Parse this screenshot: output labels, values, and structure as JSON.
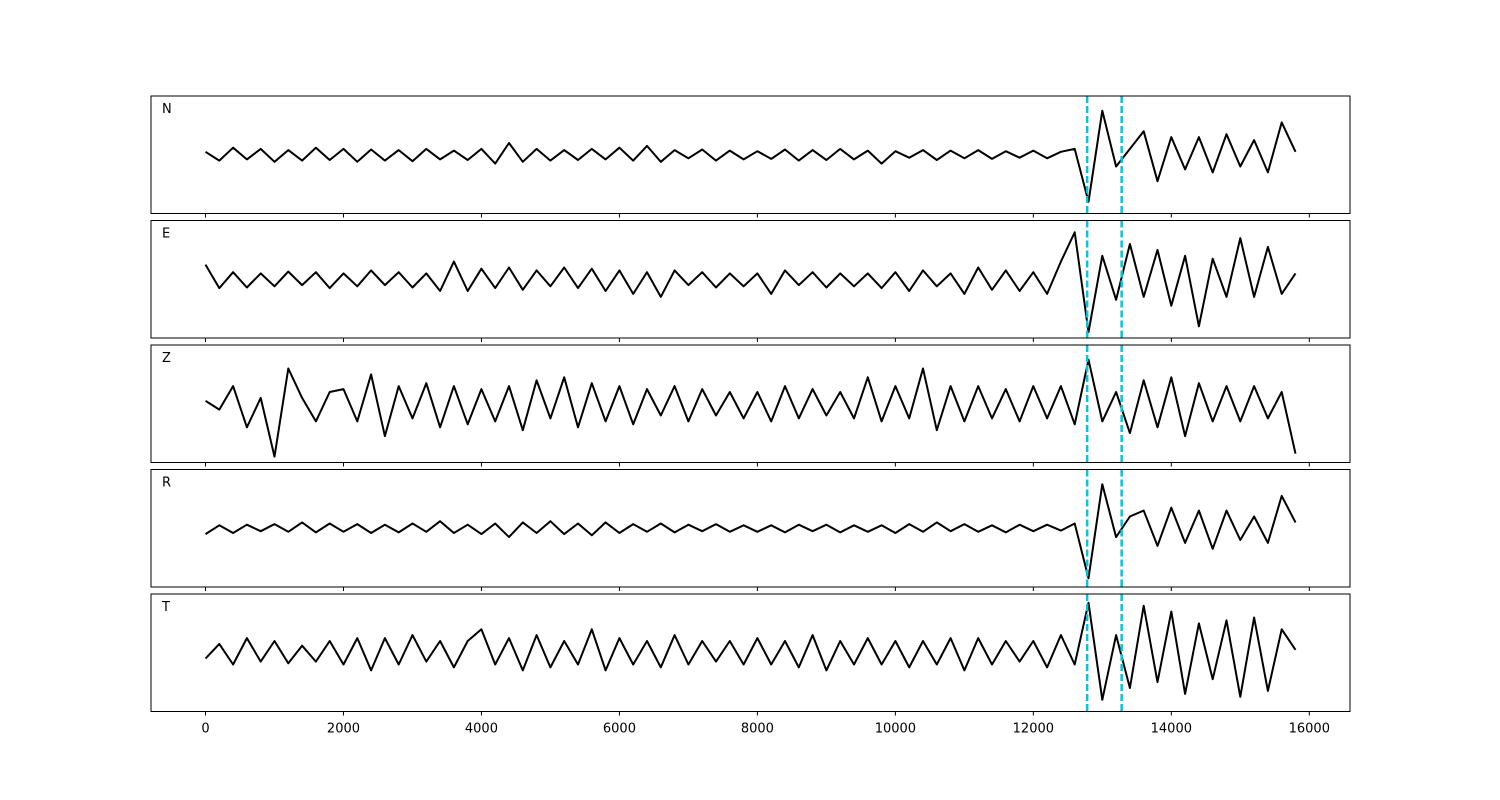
{
  "chart_data": [
    {
      "type": "line",
      "label": "N",
      "color": "#000000",
      "xlim": [
        -790,
        16590
      ],
      "ylim": [
        -1,
        1
      ],
      "xticks": [
        0,
        2000,
        4000,
        6000,
        8000,
        10000,
        12000,
        14000,
        16000
      ],
      "xticklabels": false,
      "vlines": [
        12780,
        13280
      ],
      "vline_color": "#17becf",
      "x": [
        0,
        200,
        400,
        600,
        800,
        1000,
        1200,
        1400,
        1600,
        1800,
        2000,
        2200,
        2400,
        2600,
        2800,
        3000,
        3200,
        3400,
        3600,
        3800,
        4000,
        4200,
        4400,
        4600,
        4800,
        5000,
        5200,
        5400,
        5600,
        5800,
        6000,
        6200,
        6400,
        6600,
        6800,
        7000,
        7200,
        7400,
        7600,
        7800,
        8000,
        8200,
        8400,
        8600,
        8800,
        9000,
        9200,
        9400,
        9600,
        9800,
        10000,
        10200,
        10400,
        10600,
        10800,
        11000,
        11200,
        11400,
        11600,
        11800,
        12000,
        12200,
        12400,
        12600,
        12800,
        13000,
        13200,
        13400,
        13600,
        13800,
        14000,
        14200,
        14400,
        14600,
        14800,
        15000,
        15200,
        15400,
        15600,
        15800
      ],
      "values": [
        0.05,
        -0.1,
        0.12,
        -0.08,
        0.1,
        -0.12,
        0.08,
        -0.1,
        0.12,
        -0.09,
        0.1,
        -0.12,
        0.09,
        -0.1,
        0.08,
        -0.11,
        0.1,
        -0.08,
        0.07,
        -0.09,
        0.1,
        -0.15,
        0.2,
        -0.12,
        0.1,
        -0.1,
        0.08,
        -0.09,
        0.1,
        -0.08,
        0.12,
        -0.1,
        0.15,
        -0.12,
        0.08,
        -0.06,
        0.09,
        -0.1,
        0.07,
        -0.08,
        0.06,
        -0.07,
        0.09,
        -0.1,
        0.08,
        -0.09,
        0.1,
        -0.08,
        0.07,
        -0.15,
        0.06,
        -0.05,
        0.08,
        -0.09,
        0.07,
        -0.06,
        0.08,
        -0.07,
        0.06,
        -0.05,
        0.07,
        -0.06,
        0.05,
        0.1,
        -0.8,
        0.75,
        -0.2,
        0.1,
        0.4,
        -0.45,
        0.3,
        -0.25,
        0.3,
        -0.3,
        0.35,
        -0.2,
        0.25,
        -0.3,
        0.55,
        0.05
      ]
    },
    {
      "type": "line",
      "label": "E",
      "color": "#000000",
      "xlim": [
        -790,
        16590
      ],
      "ylim": [
        -1,
        1
      ],
      "xticks": [
        0,
        2000,
        4000,
        6000,
        8000,
        10000,
        12000,
        14000,
        16000
      ],
      "xticklabels": false,
      "vlines": [
        12780,
        13280
      ],
      "vline_color": "#17becf",
      "x": [
        0,
        200,
        400,
        600,
        800,
        1000,
        1200,
        1400,
        1600,
        1800,
        2000,
        2200,
        2400,
        2600,
        2800,
        3000,
        3200,
        3400,
        3600,
        3800,
        4000,
        4200,
        4400,
        4600,
        4800,
        5000,
        5200,
        5400,
        5600,
        5800,
        6000,
        6200,
        6400,
        6600,
        6800,
        7000,
        7200,
        7400,
        7600,
        7800,
        8000,
        8200,
        8400,
        8600,
        8800,
        9000,
        9200,
        9400,
        9600,
        9800,
        10000,
        10200,
        10400,
        10600,
        10800,
        11000,
        11200,
        11400,
        11600,
        11800,
        12000,
        12200,
        12400,
        12600,
        12800,
        13000,
        13200,
        13400,
        13600,
        13800,
        14000,
        14200,
        14400,
        14600,
        14800,
        15000,
        15200,
        15400,
        15600,
        15800
      ],
      "values": [
        0.25,
        -0.15,
        0.12,
        -0.14,
        0.1,
        -0.12,
        0.13,
        -0.1,
        0.12,
        -0.15,
        0.1,
        -0.12,
        0.15,
        -0.1,
        0.12,
        -0.14,
        0.1,
        -0.2,
        0.3,
        -0.2,
        0.18,
        -0.15,
        0.2,
        -0.18,
        0.15,
        -0.12,
        0.2,
        -0.15,
        0.18,
        -0.2,
        0.15,
        -0.25,
        0.12,
        -0.3,
        0.15,
        -0.1,
        0.12,
        -0.14,
        0.1,
        -0.12,
        0.1,
        -0.25,
        0.15,
        -0.1,
        0.12,
        -0.14,
        0.1,
        -0.12,
        0.1,
        -0.15,
        0.12,
        -0.2,
        0.15,
        -0.12,
        0.1,
        -0.25,
        0.2,
        -0.18,
        0.15,
        -0.2,
        0.12,
        -0.25,
        0.3,
        0.8,
        -0.9,
        0.4,
        -0.35,
        0.6,
        -0.3,
        0.5,
        -0.45,
        0.4,
        -0.8,
        0.35,
        -0.3,
        0.7,
        -0.3,
        0.55,
        -0.25,
        0.1
      ]
    },
    {
      "type": "line",
      "label": "Z",
      "color": "#000000",
      "xlim": [
        -790,
        16590
      ],
      "ylim": [
        -1,
        1
      ],
      "xticks": [
        0,
        2000,
        4000,
        6000,
        8000,
        10000,
        12000,
        14000,
        16000
      ],
      "xticklabels": false,
      "vlines": [
        12780,
        13280
      ],
      "vline_color": "#17becf",
      "x": [
        0,
        200,
        400,
        600,
        800,
        1000,
        1200,
        1400,
        1600,
        1800,
        2000,
        2200,
        2400,
        2600,
        2800,
        3000,
        3200,
        3400,
        3600,
        3800,
        4000,
        4200,
        4400,
        4600,
        4800,
        5000,
        5200,
        5400,
        5600,
        5800,
        6000,
        6200,
        6400,
        6600,
        6800,
        7000,
        7200,
        7400,
        7600,
        7800,
        8000,
        8200,
        8400,
        8600,
        8800,
        9000,
        9200,
        9400,
        9600,
        9800,
        10000,
        10200,
        10400,
        10600,
        10800,
        11000,
        11200,
        11400,
        11600,
        11800,
        12000,
        12200,
        12400,
        12600,
        12800,
        13000,
        13200,
        13400,
        13600,
        13800,
        14000,
        14200,
        14400,
        14600,
        14800,
        15000,
        15200,
        15400,
        15600,
        15800
      ],
      "values": [
        0.05,
        -0.1,
        0.3,
        -0.4,
        0.1,
        -0.9,
        0.6,
        0.1,
        -0.3,
        0.2,
        0.25,
        -0.3,
        0.5,
        -0.55,
        0.3,
        -0.25,
        0.35,
        -0.4,
        0.3,
        -0.35,
        0.25,
        -0.3,
        0.3,
        -0.45,
        0.4,
        -0.25,
        0.45,
        -0.4,
        0.35,
        -0.3,
        0.3,
        -0.35,
        0.25,
        -0.2,
        0.3,
        -0.3,
        0.25,
        -0.2,
        0.2,
        -0.25,
        0.2,
        -0.3,
        0.3,
        -0.25,
        0.25,
        -0.2,
        0.2,
        -0.25,
        0.45,
        -0.3,
        0.3,
        -0.25,
        0.6,
        -0.45,
        0.3,
        -0.3,
        0.3,
        -0.25,
        0.25,
        -0.3,
        0.3,
        -0.25,
        0.3,
        -0.35,
        0.75,
        -0.3,
        0.2,
        -0.5,
        0.4,
        -0.4,
        0.45,
        -0.55,
        0.35,
        -0.3,
        0.3,
        -0.3,
        0.3,
        -0.25,
        0.2,
        -0.85
      ]
    },
    {
      "type": "line",
      "label": "R",
      "color": "#000000",
      "xlim": [
        -790,
        16590
      ],
      "ylim": [
        -1,
        1
      ],
      "xticks": [
        0,
        2000,
        4000,
        6000,
        8000,
        10000,
        12000,
        14000,
        16000
      ],
      "xticklabels": false,
      "vlines": [
        12780,
        13280
      ],
      "vline_color": "#17becf",
      "x": [
        0,
        200,
        400,
        600,
        800,
        1000,
        1200,
        1400,
        1600,
        1800,
        2000,
        2200,
        2400,
        2600,
        2800,
        3000,
        3200,
        3400,
        3600,
        3800,
        4000,
        4200,
        4400,
        4600,
        4800,
        5000,
        5200,
        5400,
        5600,
        5800,
        6000,
        6200,
        6400,
        6600,
        6800,
        7000,
        7200,
        7400,
        7600,
        7800,
        8000,
        8200,
        8400,
        8600,
        8800,
        9000,
        9200,
        9400,
        9600,
        9800,
        10000,
        10200,
        10400,
        10600,
        10800,
        11000,
        11200,
        11400,
        11600,
        11800,
        12000,
        12200,
        12400,
        12600,
        12800,
        13000,
        13200,
        13400,
        13600,
        13800,
        14000,
        14200,
        14400,
        14600,
        14800,
        15000,
        15200,
        15400,
        15600,
        15800
      ],
      "values": [
        -0.1,
        0.05,
        -0.08,
        0.06,
        -0.05,
        0.07,
        -0.06,
        0.1,
        -0.07,
        0.08,
        -0.06,
        0.07,
        -0.08,
        0.06,
        -0.07,
        0.08,
        -0.06,
        0.12,
        -0.08,
        0.06,
        -0.1,
        0.08,
        -0.15,
        0.1,
        -0.08,
        0.12,
        -0.1,
        0.08,
        -0.12,
        0.1,
        -0.08,
        0.07,
        -0.06,
        0.08,
        -0.07,
        0.06,
        -0.05,
        0.07,
        -0.06,
        0.05,
        -0.06,
        0.05,
        -0.07,
        0.06,
        -0.05,
        0.06,
        -0.07,
        0.05,
        -0.06,
        0.05,
        -0.08,
        0.07,
        -0.06,
        0.1,
        -0.05,
        0.07,
        -0.06,
        0.05,
        -0.07,
        0.06,
        -0.05,
        0.06,
        -0.04,
        0.08,
        -0.85,
        0.75,
        -0.15,
        0.2,
        0.3,
        -0.3,
        0.35,
        -0.25,
        0.3,
        -0.35,
        0.3,
        -0.2,
        0.2,
        -0.25,
        0.55,
        0.1
      ]
    },
    {
      "type": "line",
      "label": "T",
      "color": "#000000",
      "xlim": [
        -790,
        16590
      ],
      "ylim": [
        -1,
        1
      ],
      "xticks": [
        0,
        2000,
        4000,
        6000,
        8000,
        10000,
        12000,
        14000,
        16000
      ],
      "xticklabels": true,
      "vlines": [
        12780,
        13280
      ],
      "vline_color": "#17becf",
      "x": [
        0,
        200,
        400,
        600,
        800,
        1000,
        1200,
        1400,
        1600,
        1800,
        2000,
        2200,
        2400,
        2600,
        2800,
        3000,
        3200,
        3400,
        3600,
        3800,
        4000,
        4200,
        4400,
        4600,
        4800,
        5000,
        5200,
        5400,
        5600,
        5800,
        6000,
        6200,
        6400,
        6600,
        6800,
        7000,
        7200,
        7400,
        7600,
        7800,
        8000,
        8200,
        8400,
        8600,
        8800,
        9000,
        9200,
        9400,
        9600,
        9800,
        10000,
        10200,
        10400,
        10600,
        10800,
        11000,
        11200,
        11400,
        11600,
        11800,
        12000,
        12200,
        12400,
        12600,
        12800,
        13000,
        13200,
        13400,
        13600,
        13800,
        14000,
        14200,
        14400,
        14600,
        14800,
        15000,
        15200,
        15400,
        15600,
        15800
      ],
      "values": [
        -0.1,
        0.15,
        -0.2,
        0.25,
        -0.15,
        0.2,
        -0.18,
        0.12,
        -0.15,
        0.2,
        -0.2,
        0.25,
        -0.3,
        0.25,
        -0.2,
        0.3,
        -0.15,
        0.2,
        -0.25,
        0.2,
        0.4,
        -0.2,
        0.25,
        -0.3,
        0.3,
        -0.25,
        0.2,
        -0.2,
        0.4,
        -0.3,
        0.25,
        -0.2,
        0.2,
        -0.25,
        0.3,
        -0.2,
        0.2,
        -0.15,
        0.2,
        -0.2,
        0.25,
        -0.2,
        0.2,
        -0.25,
        0.3,
        -0.3,
        0.2,
        -0.2,
        0.25,
        -0.2,
        0.2,
        -0.25,
        0.2,
        -0.2,
        0.25,
        -0.3,
        0.25,
        -0.2,
        0.2,
        -0.15,
        0.2,
        -0.25,
        0.3,
        -0.2,
        0.85,
        -0.8,
        0.3,
        -0.6,
        0.8,
        -0.5,
        0.7,
        -0.7,
        0.5,
        -0.45,
        0.55,
        -0.75,
        0.6,
        -0.65,
        0.4,
        0.05
      ]
    }
  ]
}
